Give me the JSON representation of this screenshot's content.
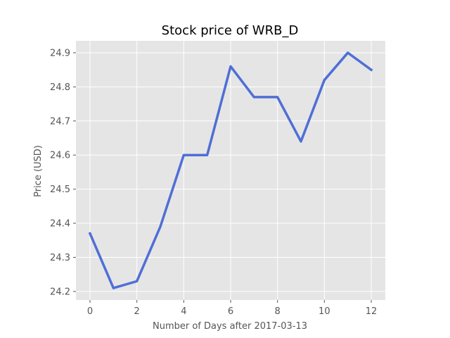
{
  "chart_data": {
    "type": "line",
    "title": "Stock price of WRB_D",
    "xlabel": "Number of Days after 2017-03-13",
    "ylabel": "Price (USD)",
    "xlim": [
      -0.6,
      12.6
    ],
    "ylim": [
      24.175,
      24.935
    ],
    "xticks": [
      0,
      2,
      4,
      6,
      8,
      10,
      12
    ],
    "yticks": [
      24.2,
      24.3,
      24.4,
      24.5,
      24.6,
      24.7,
      24.8,
      24.9
    ],
    "grid": true,
    "series": [
      {
        "color": "#4f6fd6",
        "x": [
          0,
          1,
          2,
          3,
          4,
          5,
          6,
          7,
          8,
          9,
          10,
          11,
          12
        ],
        "y": [
          24.37,
          24.21,
          24.23,
          24.39,
          24.6,
          24.6,
          24.86,
          24.77,
          24.77,
          24.64,
          24.82,
          24.9,
          24.85
        ]
      }
    ],
    "colors": {
      "plot_background": "#e5e5e5",
      "grid": "#ffffff"
    }
  }
}
